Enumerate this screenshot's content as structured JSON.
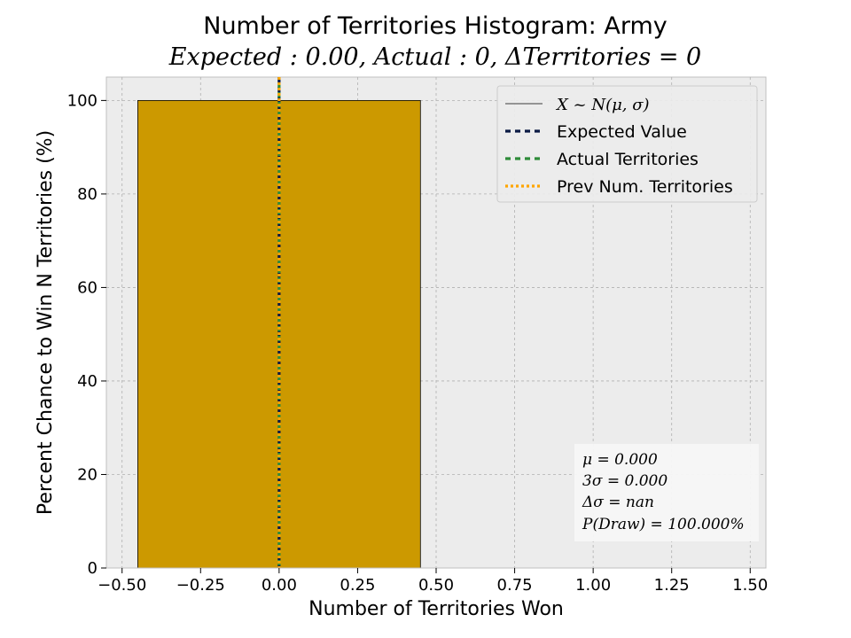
{
  "chart_data": {
    "type": "bar",
    "title": "Number of Territories Histogram: Army",
    "subtitle": "Expected : 0.00, Actual : 0, ΔTerritories = 0",
    "xlabel": "Number of Territories Won",
    "ylabel": "Percent Chance to Win N Territories (%)",
    "xlim": [
      -0.55,
      1.55
    ],
    "ylim": [
      0,
      105
    ],
    "xticks": [
      -0.5,
      -0.25,
      0.0,
      0.25,
      0.5,
      0.75,
      1.0,
      1.25,
      1.5
    ],
    "xtick_labels": [
      "−0.50",
      "−0.25",
      "0.00",
      "0.25",
      "0.50",
      "0.75",
      "1.00",
      "1.25",
      "1.50"
    ],
    "yticks": [
      0,
      20,
      40,
      60,
      80,
      100
    ],
    "ytick_labels": [
      "0",
      "20",
      "40",
      "60",
      "80",
      "100"
    ],
    "grid": true,
    "bars": [
      {
        "x": 0,
        "width": 0.9,
        "value": 100,
        "color": "#cc9900"
      }
    ],
    "vlines": [
      {
        "name": "Expected Value",
        "x": 0,
        "color": "#0b1a44",
        "style": "dashed"
      },
      {
        "name": "Actual Territories",
        "x": 0,
        "color": "#2e8b3a",
        "style": "dashed"
      },
      {
        "name": "Prev Num. Territories",
        "x": 0,
        "color": "#ffa500",
        "style": "dotted"
      }
    ],
    "legend": {
      "position": "top-right",
      "entries": [
        {
          "label": "X ~ N(μ, σ)",
          "color": "#000000",
          "style": "solid-thin"
        },
        {
          "label": "Expected Value",
          "color": "#0b1a44",
          "style": "dashed"
        },
        {
          "label": "Actual Territories",
          "color": "#2e8b3a",
          "style": "dashed"
        },
        {
          "label": "Prev Num. Territories",
          "color": "#ffa500",
          "style": "dotted"
        }
      ]
    },
    "stats_box": {
      "position": "bottom-right",
      "lines": [
        "μ = 0.000",
        "3σ = 0.000",
        "Δσ = nan",
        "P(Draw) = 100.000%"
      ]
    }
  }
}
